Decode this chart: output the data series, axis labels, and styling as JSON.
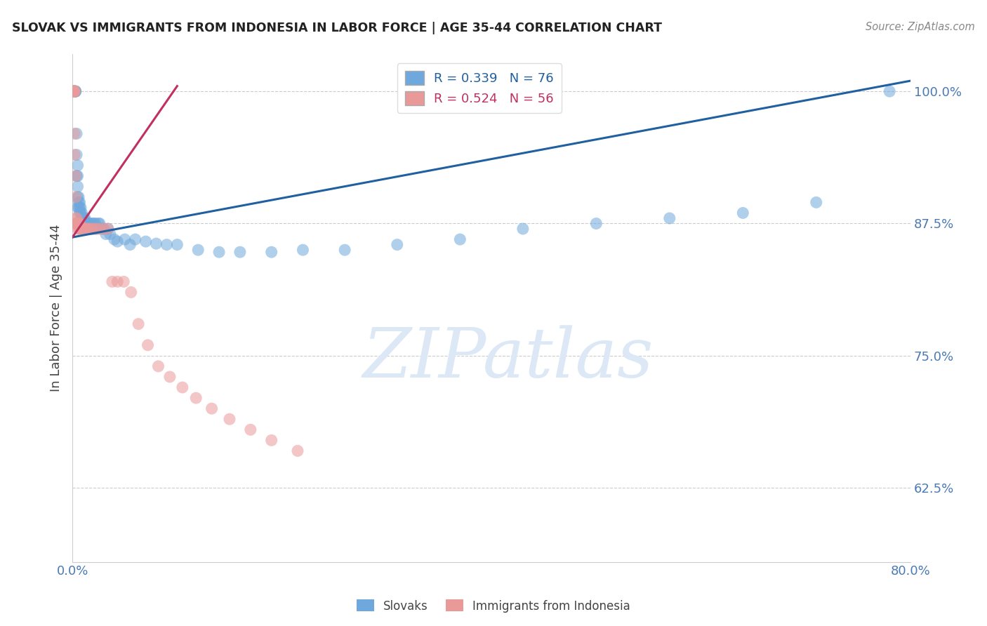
{
  "title": "SLOVAK VS IMMIGRANTS FROM INDONESIA IN LABOR FORCE | AGE 35-44 CORRELATION CHART",
  "source": "Source: ZipAtlas.com",
  "ylabel": "In Labor Force | Age 35-44",
  "legend_blue_r": "R = 0.339",
  "legend_blue_n": "N = 76",
  "legend_pink_r": "R = 0.524",
  "legend_pink_n": "N = 56",
  "legend1": "Slovaks",
  "legend2": "Immigrants from Indonesia",
  "blue_color": "#6fa8dc",
  "pink_color": "#ea9999",
  "trendline_blue": "#2060a0",
  "trendline_pink": "#c03060",
  "watermark_text": "ZIPatlas",
  "blue_x": [
    0.001,
    0.001,
    0.002,
    0.002,
    0.003,
    0.003,
    0.003,
    0.004,
    0.004,
    0.004,
    0.005,
    0.005,
    0.005,
    0.005,
    0.005,
    0.006,
    0.006,
    0.006,
    0.007,
    0.007,
    0.007,
    0.008,
    0.008,
    0.008,
    0.009,
    0.009,
    0.009,
    0.01,
    0.01,
    0.011,
    0.011,
    0.012,
    0.012,
    0.013,
    0.013,
    0.014,
    0.015,
    0.015,
    0.016,
    0.017,
    0.018,
    0.019,
    0.02,
    0.021,
    0.022,
    0.023,
    0.025,
    0.026,
    0.028,
    0.03,
    0.032,
    0.034,
    0.036,
    0.04,
    0.043,
    0.05,
    0.055,
    0.06,
    0.07,
    0.08,
    0.09,
    0.1,
    0.12,
    0.14,
    0.16,
    0.19,
    0.22,
    0.26,
    0.31,
    0.37,
    0.43,
    0.5,
    0.57,
    0.64,
    0.71,
    0.78
  ],
  "blue_y": [
    1.0,
    1.0,
    1.0,
    1.0,
    1.0,
    1.0,
    1.0,
    0.96,
    0.94,
    0.92,
    0.93,
    0.92,
    0.91,
    0.9,
    0.89,
    0.9,
    0.895,
    0.89,
    0.895,
    0.89,
    0.885,
    0.89,
    0.885,
    0.88,
    0.885,
    0.88,
    0.875,
    0.88,
    0.875,
    0.88,
    0.875,
    0.88,
    0.875,
    0.875,
    0.87,
    0.875,
    0.875,
    0.87,
    0.875,
    0.87,
    0.875,
    0.875,
    0.87,
    0.875,
    0.875,
    0.87,
    0.875,
    0.875,
    0.87,
    0.87,
    0.865,
    0.87,
    0.865,
    0.86,
    0.858,
    0.86,
    0.855,
    0.86,
    0.858,
    0.856,
    0.855,
    0.855,
    0.85,
    0.848,
    0.848,
    0.848,
    0.85,
    0.85,
    0.855,
    0.86,
    0.87,
    0.875,
    0.88,
    0.885,
    0.895,
    1.0
  ],
  "pink_x": [
    0.001,
    0.001,
    0.001,
    0.001,
    0.001,
    0.002,
    0.002,
    0.002,
    0.002,
    0.002,
    0.003,
    0.003,
    0.003,
    0.003,
    0.004,
    0.004,
    0.004,
    0.004,
    0.005,
    0.005,
    0.005,
    0.006,
    0.006,
    0.006,
    0.007,
    0.007,
    0.008,
    0.008,
    0.009,
    0.01,
    0.011,
    0.012,
    0.013,
    0.015,
    0.016,
    0.018,
    0.02,
    0.023,
    0.026,
    0.03,
    0.034,
    0.038,
    0.043,
    0.049,
    0.056,
    0.063,
    0.072,
    0.082,
    0.093,
    0.105,
    0.118,
    0.133,
    0.15,
    0.17,
    0.19,
    0.215
  ],
  "pink_y": [
    1.0,
    1.0,
    1.0,
    1.0,
    1.0,
    1.0,
    1.0,
    1.0,
    0.96,
    0.94,
    0.92,
    0.9,
    0.88,
    0.875,
    0.875,
    0.875,
    0.88,
    0.875,
    0.875,
    0.875,
    0.87,
    0.875,
    0.875,
    0.87,
    0.875,
    0.87,
    0.87,
    0.87,
    0.87,
    0.87,
    0.87,
    0.87,
    0.87,
    0.87,
    0.87,
    0.87,
    0.87,
    0.87,
    0.87,
    0.87,
    0.87,
    0.82,
    0.82,
    0.82,
    0.81,
    0.78,
    0.76,
    0.74,
    0.73,
    0.72,
    0.71,
    0.7,
    0.69,
    0.68,
    0.67,
    0.66
  ],
  "xlim": [
    0.0,
    0.8
  ],
  "ylim": [
    0.555,
    1.035
  ],
  "yticks": [
    0.625,
    0.75,
    0.875,
    1.0
  ],
  "ytick_labels": [
    "62.5%",
    "75.0%",
    "87.5%",
    "100.0%"
  ],
  "xticks": [
    0.0,
    0.16,
    0.32,
    0.48,
    0.64,
    0.8
  ],
  "xtick_labels": [
    "0.0%",
    "",
    "",
    "",
    "",
    "80.0%"
  ],
  "background_color": "#ffffff",
  "grid_color": "#cccccc",
  "title_color": "#222222",
  "axis_label_color": "#444444",
  "tick_label_color": "#4a7ab5",
  "watermark_color": "#dce8f5"
}
